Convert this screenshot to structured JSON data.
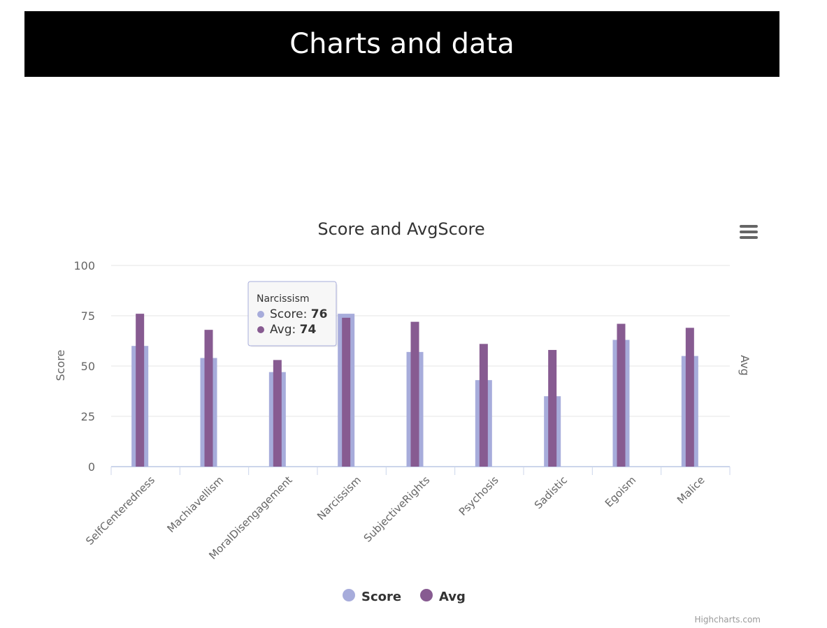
{
  "header": {
    "title": "Charts and data"
  },
  "colors": {
    "score": "#a7acdb",
    "avg": "#875b91",
    "grid": "#e6e6e6",
    "axis": "#ccd6eb",
    "text": "#666666",
    "title": "#333333"
  },
  "tooltip": {
    "category": "Narcissism",
    "score_label": "Score: ",
    "score_value": "76",
    "avg_label": "Avg: ",
    "avg_value": "74"
  },
  "credit": "Highcharts.com",
  "menu": {
    "icon": "hamburger-menu-icon"
  },
  "chart_data": {
    "type": "bar",
    "title": "Score and AvgScore",
    "categories": [
      "SelfCenteredness",
      "Machiavellism",
      "MoralDisengagement",
      "Narcissism",
      "SubjectiveRights",
      "Psychosis",
      "Sadistic",
      "Egoism",
      "Malice"
    ],
    "series": [
      {
        "name": "Score",
        "values": [
          60,
          54,
          47,
          76,
          57,
          43,
          35,
          63,
          55
        ]
      },
      {
        "name": "Avg",
        "values": [
          76,
          68,
          53,
          74,
          72,
          61,
          58,
          71,
          69
        ]
      }
    ],
    "ylabel": "Score",
    "ylabel_right": "Avg",
    "ylim": [
      0,
      100
    ],
    "yticks": [
      0,
      25,
      50,
      75,
      100
    ],
    "legend": "bottom-center",
    "grid": true
  }
}
